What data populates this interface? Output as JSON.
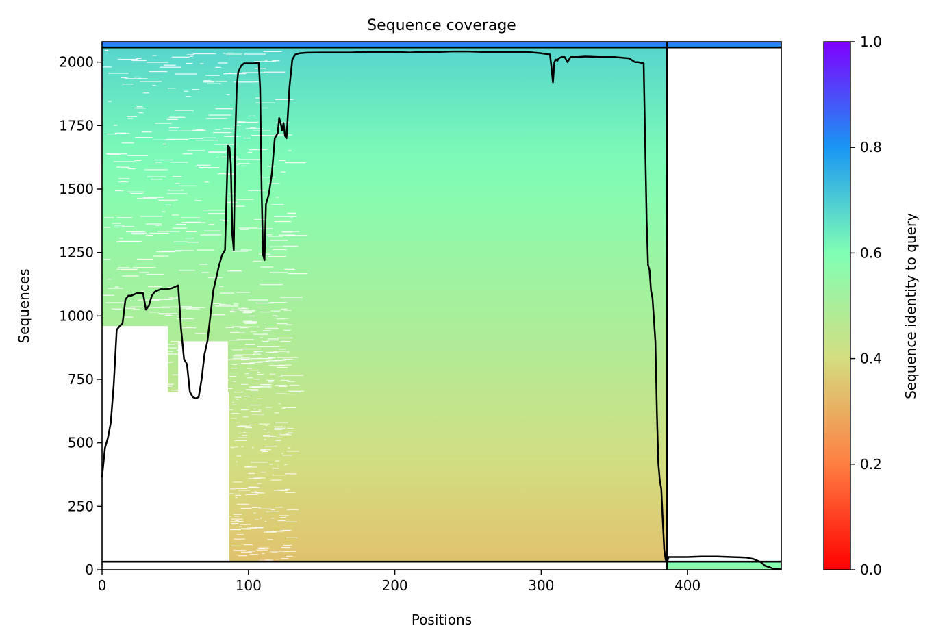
{
  "chart_data": {
    "type": "heatmap",
    "title": "Sequence coverage",
    "xlabel": "Positions",
    "ylabel": "Sequences",
    "xlim": [
      0,
      464
    ],
    "ylim": [
      0,
      2080
    ],
    "x_ticks": [
      0,
      100,
      200,
      300,
      400
    ],
    "y_ticks": [
      0,
      250,
      500,
      750,
      1000,
      1250,
      1500,
      1750,
      2000
    ],
    "colorbar": {
      "label": "Sequence identity to query",
      "range": [
        0,
        1
      ],
      "ticks": [
        "0.0",
        "0.2",
        "0.4",
        "0.6",
        "0.8",
        "1.0"
      ],
      "colormap": "rainbow",
      "stops": [
        "#ff0000",
        "#ff7e41",
        "#d4dd80",
        "#80ffb4",
        "#1996f3",
        "#8000ff"
      ]
    },
    "chain_break_x": 386,
    "separator_rows": [
      32,
      2058
    ],
    "regions": [
      {
        "name": "msa-region-main",
        "x": [
          0,
          386
        ],
        "y": [
          32,
          2058
        ],
        "identity_bottom": 0.34,
        "identity_top": 0.68
      },
      {
        "name": "msa-region-top-band",
        "x": [
          0,
          464
        ],
        "y": [
          2058,
          2080
        ],
        "identity_bottom": 0.8,
        "identity_top": 0.85
      },
      {
        "name": "msa-region-bottom-right",
        "x": [
          386,
          464
        ],
        "y": [
          0,
          32
        ],
        "identity_bottom": 0.56,
        "identity_top": 0.6
      }
    ],
    "gap_regions": [
      {
        "x": [
          0,
          87
        ],
        "y": [
          32,
          700
        ]
      },
      {
        "x": [
          52,
          86
        ],
        "y": [
          700,
          900
        ]
      },
      {
        "x": [
          0,
          45
        ],
        "y": [
          700,
          960
        ]
      },
      {
        "x": [
          387,
          464
        ],
        "y": [
          55,
          2057
        ]
      }
    ],
    "coverage_line": {
      "x": [
        0,
        2,
        4,
        6,
        8,
        10,
        12,
        14,
        16,
        18,
        20,
        24,
        28,
        30,
        32,
        34,
        36,
        40,
        44,
        48,
        52,
        54,
        56,
        58,
        60,
        62,
        64,
        66,
        68,
        70,
        72,
        74,
        76,
        78,
        80,
        82,
        84,
        86,
        87,
        88,
        89,
        90,
        91,
        92,
        93,
        95,
        97,
        100,
        104,
        107,
        108,
        109,
        110,
        111,
        112,
        114,
        116,
        118,
        120,
        121,
        122,
        123,
        124,
        125,
        126,
        128,
        130,
        132,
        135,
        140,
        150,
        160,
        170,
        180,
        190,
        200,
        210,
        220,
        230,
        240,
        250,
        260,
        270,
        280,
        290,
        300,
        306,
        307,
        308,
        309,
        310,
        311,
        312,
        314,
        316,
        318,
        320,
        325,
        330,
        340,
        350,
        360,
        364,
        366,
        370,
        372,
        373,
        374,
        375,
        376,
        378,
        379,
        380,
        381,
        382,
        383,
        384,
        385,
        386,
        387,
        390,
        400,
        410,
        420,
        430,
        440,
        445,
        450,
        451,
        453,
        456,
        458,
        462,
        464
      ],
      "y": [
        365,
        480,
        520,
        580,
        730,
        945,
        960,
        970,
        1065,
        1080,
        1080,
        1090,
        1090,
        1025,
        1040,
        1080,
        1095,
        1105,
        1105,
        1110,
        1120,
        950,
        830,
        810,
        700,
        680,
        675,
        680,
        750,
        850,
        900,
        1000,
        1100,
        1150,
        1200,
        1240,
        1260,
        1670,
        1665,
        1600,
        1320,
        1260,
        1700,
        1900,
        1960,
        1985,
        1995,
        1995,
        1995,
        1998,
        1900,
        1500,
        1240,
        1220,
        1440,
        1480,
        1560,
        1700,
        1720,
        1780,
        1760,
        1730,
        1760,
        1710,
        1700,
        1900,
        2010,
        2030,
        2035,
        2037,
        2038,
        2038,
        2038,
        2040,
        2040,
        2040,
        2038,
        2040,
        2040,
        2042,
        2042,
        2040,
        2040,
        2040,
        2040,
        2035,
        2030,
        1980,
        1920,
        2000,
        2010,
        2005,
        2015,
        2020,
        2020,
        2000,
        2020,
        2020,
        2022,
        2020,
        2020,
        2015,
        2000,
        2000,
        1995,
        1380,
        1200,
        1180,
        1100,
        1070,
        900,
        620,
        420,
        350,
        320,
        200,
        80,
        40,
        30,
        50,
        50,
        50,
        52,
        52,
        50,
        48,
        42,
        30,
        25,
        15,
        10,
        5,
        3,
        3
      ]
    }
  }
}
